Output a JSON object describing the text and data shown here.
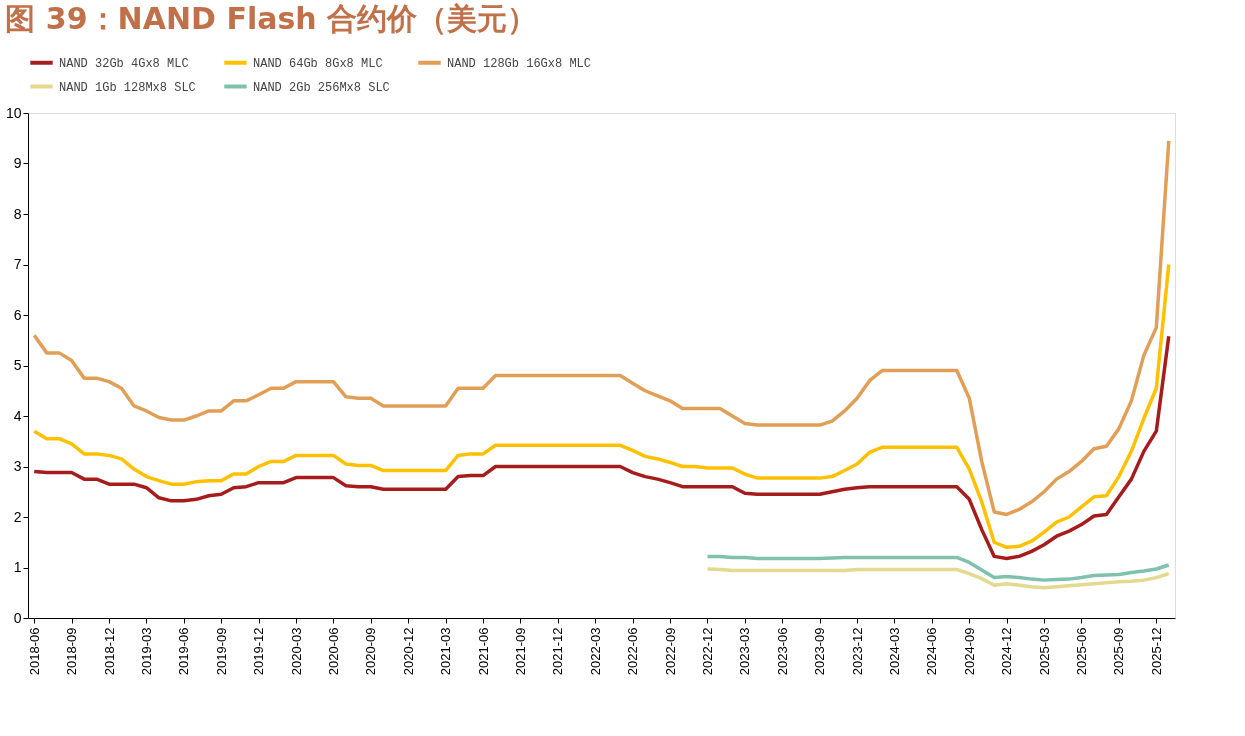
{
  "chart_data": {
    "type": "line",
    "title": "图 39：NAND Flash 合约价（美元）",
    "categories": [
      "2018-06",
      null,
      null,
      "2018-09",
      null,
      null,
      "2018-12",
      null,
      null,
      "2019-03",
      null,
      null,
      "2019-06",
      null,
      null,
      "2019-09",
      null,
      null,
      "2019-12",
      null,
      null,
      "2020-03",
      null,
      null,
      "2020-06",
      null,
      null,
      "2020-09",
      null,
      null,
      "2020-12",
      null,
      null,
      "2021-03",
      null,
      null,
      "2021-06",
      null,
      null,
      "2021-09",
      null,
      null,
      "2021-12",
      null,
      null,
      "2022-03",
      null,
      null,
      "2022-06",
      null,
      null,
      "2022-09",
      null,
      null,
      "2022-12",
      null,
      null,
      "2023-03",
      null,
      null,
      "2023-06",
      null,
      null,
      "2023-09",
      null,
      null,
      "2023-12",
      null,
      null,
      "2024-03",
      null,
      null,
      "2024-06",
      null,
      null,
      "2024-09",
      null,
      null,
      "2024-12",
      null,
      null,
      "2025-03",
      null,
      null,
      "2025-06",
      null,
      null,
      "2025-09",
      null,
      null,
      "2025-12",
      null
    ],
    "series": [
      {
        "name": "NAND 32Gb 4Gx8 MLC",
        "color": "#a61c1c",
        "values": [
          2.9,
          2.88,
          2.88,
          2.88,
          2.75,
          2.75,
          2.65,
          2.65,
          2.65,
          2.58,
          2.38,
          2.32,
          2.32,
          2.35,
          2.42,
          2.45,
          2.58,
          2.6,
          2.68,
          2.68,
          2.68,
          2.78,
          2.78,
          2.78,
          2.78,
          2.62,
          2.6,
          2.6,
          2.55,
          2.55,
          2.55,
          2.55,
          2.55,
          2.55,
          2.8,
          2.82,
          2.82,
          3.0,
          3.0,
          3.0,
          3.0,
          3.0,
          3.0,
          3.0,
          3.0,
          3.0,
          3.0,
          3.0,
          2.88,
          2.8,
          2.75,
          2.68,
          2.6,
          2.6,
          2.6,
          2.6,
          2.6,
          2.47,
          2.45,
          2.45,
          2.45,
          2.45,
          2.45,
          2.45,
          2.5,
          2.55,
          2.58,
          2.6,
          2.6,
          2.6,
          2.6,
          2.6,
          2.6,
          2.6,
          2.6,
          2.35,
          1.75,
          1.22,
          1.18,
          1.22,
          1.32,
          1.45,
          1.62,
          1.72,
          1.85,
          2.02,
          2.05,
          2.4,
          2.75,
          3.3,
          3.7,
          5.58
        ]
      },
      {
        "name": "NAND 64Gb 8Gx8 MLC",
        "color": "#ffc000",
        "values": [
          3.7,
          3.55,
          3.55,
          3.45,
          3.25,
          3.25,
          3.22,
          3.15,
          2.95,
          2.8,
          2.72,
          2.65,
          2.65,
          2.7,
          2.72,
          2.72,
          2.85,
          2.85,
          3.0,
          3.1,
          3.1,
          3.22,
          3.22,
          3.22,
          3.22,
          3.05,
          3.02,
          3.02,
          2.92,
          2.92,
          2.92,
          2.92,
          2.92,
          2.92,
          3.22,
          3.25,
          3.25,
          3.42,
          3.42,
          3.42,
          3.42,
          3.42,
          3.42,
          3.42,
          3.42,
          3.42,
          3.42,
          3.42,
          3.32,
          3.2,
          3.15,
          3.08,
          3.0,
          3.0,
          2.97,
          2.97,
          2.97,
          2.85,
          2.77,
          2.77,
          2.77,
          2.77,
          2.77,
          2.77,
          2.8,
          2.92,
          3.05,
          3.28,
          3.38,
          3.38,
          3.38,
          3.38,
          3.38,
          3.38,
          3.38,
          2.95,
          2.3,
          1.5,
          1.4,
          1.42,
          1.52,
          1.7,
          1.9,
          2.0,
          2.2,
          2.4,
          2.42,
          2.8,
          3.3,
          3.95,
          4.55,
          7.0
        ]
      },
      {
        "name": "NAND 128Gb 16Gx8 MLC",
        "color": "#e19e57",
        "values": [
          5.6,
          5.25,
          5.25,
          5.1,
          4.75,
          4.75,
          4.68,
          4.55,
          4.2,
          4.1,
          3.97,
          3.92,
          3.92,
          4.0,
          4.1,
          4.1,
          4.3,
          4.3,
          4.42,
          4.55,
          4.55,
          4.68,
          4.68,
          4.68,
          4.68,
          4.38,
          4.35,
          4.35,
          4.2,
          4.2,
          4.2,
          4.2,
          4.2,
          4.2,
          4.55,
          4.55,
          4.55,
          4.8,
          4.8,
          4.8,
          4.8,
          4.8,
          4.8,
          4.8,
          4.8,
          4.8,
          4.8,
          4.8,
          4.65,
          4.5,
          4.4,
          4.3,
          4.15,
          4.15,
          4.15,
          4.15,
          4.0,
          3.85,
          3.82,
          3.82,
          3.82,
          3.82,
          3.82,
          3.82,
          3.9,
          4.1,
          4.35,
          4.7,
          4.9,
          4.9,
          4.9,
          4.9,
          4.9,
          4.9,
          4.9,
          4.35,
          3.1,
          2.1,
          2.05,
          2.15,
          2.3,
          2.5,
          2.75,
          2.9,
          3.1,
          3.35,
          3.4,
          3.75,
          4.3,
          5.2,
          5.75,
          9.45
        ]
      },
      {
        "name": "NAND 1Gb 128Mx8 SLC",
        "color": "#e3d98f",
        "values": [
          null,
          null,
          null,
          null,
          null,
          null,
          null,
          null,
          null,
          null,
          null,
          null,
          null,
          null,
          null,
          null,
          null,
          null,
          null,
          null,
          null,
          null,
          null,
          null,
          null,
          null,
          null,
          null,
          null,
          null,
          null,
          null,
          null,
          null,
          null,
          null,
          null,
          null,
          null,
          null,
          null,
          null,
          null,
          null,
          null,
          null,
          null,
          null,
          null,
          null,
          null,
          null,
          null,
          null,
          0.97,
          0.96,
          0.94,
          0.94,
          0.94,
          0.94,
          0.94,
          0.94,
          0.94,
          0.94,
          0.94,
          0.94,
          0.96,
          0.96,
          0.96,
          0.96,
          0.96,
          0.96,
          0.96,
          0.96,
          0.96,
          0.88,
          0.78,
          0.65,
          0.68,
          0.65,
          0.62,
          0.6,
          0.62,
          0.64,
          0.66,
          0.68,
          0.7,
          0.72,
          0.73,
          0.75,
          0.8,
          0.88
        ]
      },
      {
        "name": "NAND 2Gb 256Mx8 SLC",
        "color": "#7fc1ad",
        "values": [
          null,
          null,
          null,
          null,
          null,
          null,
          null,
          null,
          null,
          null,
          null,
          null,
          null,
          null,
          null,
          null,
          null,
          null,
          null,
          null,
          null,
          null,
          null,
          null,
          null,
          null,
          null,
          null,
          null,
          null,
          null,
          null,
          null,
          null,
          null,
          null,
          null,
          null,
          null,
          null,
          null,
          null,
          null,
          null,
          null,
          null,
          null,
          null,
          null,
          null,
          null,
          null,
          null,
          null,
          1.22,
          1.22,
          1.2,
          1.2,
          1.18,
          1.18,
          1.18,
          1.18,
          1.18,
          1.18,
          1.19,
          1.2,
          1.2,
          1.2,
          1.2,
          1.2,
          1.2,
          1.2,
          1.2,
          1.2,
          1.2,
          1.1,
          0.95,
          0.8,
          0.82,
          0.8,
          0.77,
          0.75,
          0.76,
          0.77,
          0.8,
          0.84,
          0.85,
          0.86,
          0.9,
          0.93,
          0.97,
          1.05
        ]
      }
    ],
    "ylim": [
      0,
      10
    ],
    "yticks": [
      0,
      1,
      2,
      3,
      4,
      5,
      6,
      7,
      8,
      9,
      10
    ],
    "grid": false,
    "legend": "top",
    "marker": "none",
    "line_style": "solid"
  }
}
